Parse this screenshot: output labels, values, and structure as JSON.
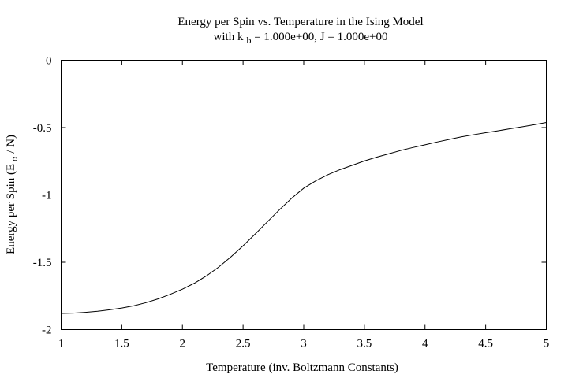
{
  "chart_data": {
    "type": "line",
    "title_line1": "Energy per Spin vs. Temperature in the Ising Model",
    "title_line2_prefix": "with k",
    "title_line2_sub": "b",
    "title_line2_suffix": " = 1.000e+00, J = 1.000e+00",
    "xlabel": "Temperature (inv. Boltzmann Constants)",
    "ylabel_prefix": "Energy per Spin (E",
    "ylabel_sub": "α",
    "ylabel_suffix": " / N)",
    "xlim": [
      1,
      5
    ],
    "ylim": [
      -2,
      0
    ],
    "grid": false,
    "legend": "none",
    "line_color": "#000000",
    "x_ticks": [
      1,
      1.5,
      2,
      2.5,
      3,
      3.5,
      4,
      4.5,
      5
    ],
    "x_tick_labels": [
      "1",
      "1.5",
      "2",
      "2.5",
      "3",
      "3.5",
      "4",
      "4.5",
      "5"
    ],
    "y_ticks": [
      -2,
      -1.5,
      -1,
      -0.5,
      0
    ],
    "y_tick_labels": [
      "-2",
      "-1.5",
      "-1",
      "-0.5",
      "0"
    ],
    "series": [
      {
        "x": [
          1.0,
          1.1,
          1.2,
          1.3,
          1.4,
          1.5,
          1.6,
          1.7,
          1.8,
          1.9,
          2.0,
          2.1,
          2.2,
          2.3,
          2.4,
          2.5,
          2.6,
          2.7,
          2.8,
          2.9,
          3.0,
          3.1,
          3.2,
          3.3,
          3.4,
          3.5,
          3.6,
          3.7,
          3.8,
          3.9,
          4.0,
          4.1,
          4.2,
          4.3,
          4.4,
          4.5,
          4.6,
          4.7,
          4.8,
          4.9,
          5.0
        ],
        "y": [
          -1.88,
          -1.878,
          -1.872,
          -1.864,
          -1.853,
          -1.84,
          -1.823,
          -1.8,
          -1.772,
          -1.738,
          -1.7,
          -1.655,
          -1.6,
          -1.535,
          -1.46,
          -1.378,
          -1.29,
          -1.2,
          -1.11,
          -1.025,
          -0.95,
          -0.895,
          -0.85,
          -0.812,
          -0.78,
          -0.748,
          -0.72,
          -0.695,
          -0.67,
          -0.648,
          -0.628,
          -0.607,
          -0.588,
          -0.569,
          -0.553,
          -0.538,
          -0.524,
          -0.509,
          -0.494,
          -0.479,
          -0.462
        ]
      }
    ]
  }
}
